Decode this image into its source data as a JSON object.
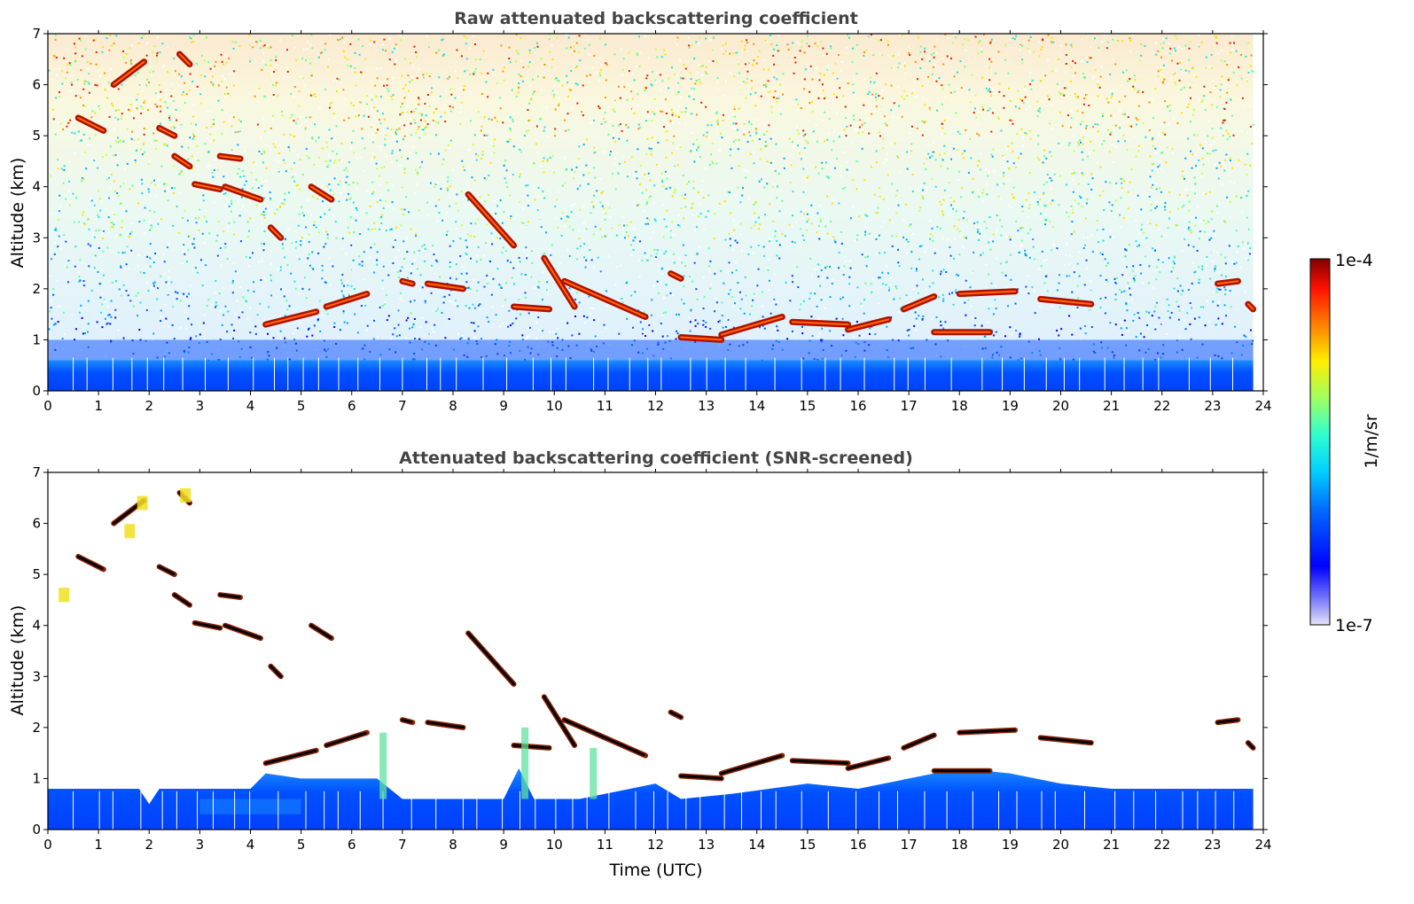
{
  "chart_data": [
    {
      "type": "heatmap",
      "title": "Raw attenuated backscattering coefficient",
      "ylabel": "Altitude (km)",
      "xlabel": "",
      "xlim": [
        0,
        24
      ],
      "ylim": [
        0,
        7
      ],
      "xticks": [
        "0",
        "1",
        "2",
        "3",
        "4",
        "5",
        "6",
        "7",
        "8",
        "9",
        "10",
        "11",
        "12",
        "13",
        "14",
        "15",
        "16",
        "17",
        "18",
        "19",
        "20",
        "21",
        "22",
        "23",
        "24"
      ],
      "yticks": [
        "0",
        "1",
        "2",
        "3",
        "4",
        "5",
        "6",
        "7"
      ],
      "data_end_hour": 23.8,
      "layers": [
        {
          "name": "boundary layer",
          "x": [
            0,
            23.8
          ],
          "y": [
            0,
            0.6
          ],
          "level": "low"
        },
        {
          "name": "noise above 2 km",
          "x": [
            0,
            23.8
          ],
          "y": [
            2,
            7
          ],
          "level": "mixed"
        }
      ],
      "cloud_segments": [
        {
          "x": [
            0.6,
            1.1
          ],
          "y": [
            5.35,
            5.1
          ]
        },
        {
          "x": [
            1.3,
            1.9
          ],
          "y": [
            6.0,
            6.45
          ]
        },
        {
          "x": [
            2.2,
            2.5
          ],
          "y": [
            5.15,
            5.0
          ]
        },
        {
          "x": [
            2.6,
            2.8
          ],
          "y": [
            6.6,
            6.4
          ]
        },
        {
          "x": [
            2.5,
            2.8
          ],
          "y": [
            4.6,
            4.4
          ]
        },
        {
          "x": [
            2.9,
            3.4
          ],
          "y": [
            4.05,
            3.95
          ]
        },
        {
          "x": [
            3.5,
            4.2
          ],
          "y": [
            4.0,
            3.75
          ]
        },
        {
          "x": [
            3.4,
            3.8
          ],
          "y": [
            4.6,
            4.55
          ]
        },
        {
          "x": [
            4.4,
            4.6
          ],
          "y": [
            3.2,
            3.0
          ]
        },
        {
          "x": [
            5.2,
            5.6
          ],
          "y": [
            4.0,
            3.75
          ]
        },
        {
          "x": [
            4.3,
            5.3
          ],
          "y": [
            1.3,
            1.55
          ]
        },
        {
          "x": [
            5.5,
            6.3
          ],
          "y": [
            1.65,
            1.9
          ]
        },
        {
          "x": [
            7.0,
            7.2
          ],
          "y": [
            2.15,
            2.1
          ]
        },
        {
          "x": [
            7.5,
            8.2
          ],
          "y": [
            2.1,
            2.0
          ]
        },
        {
          "x": [
            8.3,
            9.2
          ],
          "y": [
            3.85,
            2.85
          ]
        },
        {
          "x": [
            9.2,
            9.9
          ],
          "y": [
            1.65,
            1.6
          ]
        },
        {
          "x": [
            9.8,
            10.4
          ],
          "y": [
            2.6,
            1.65
          ]
        },
        {
          "x": [
            10.2,
            11.8
          ],
          "y": [
            2.15,
            1.45
          ]
        },
        {
          "x": [
            12.3,
            12.5
          ],
          "y": [
            2.3,
            2.2
          ]
        },
        {
          "x": [
            12.5,
            13.3
          ],
          "y": [
            1.05,
            1.0
          ]
        },
        {
          "x": [
            13.3,
            14.5
          ],
          "y": [
            1.1,
            1.45
          ]
        },
        {
          "x": [
            14.7,
            15.8
          ],
          "y": [
            1.35,
            1.3
          ]
        },
        {
          "x": [
            15.8,
            16.6
          ],
          "y": [
            1.2,
            1.4
          ]
        },
        {
          "x": [
            16.9,
            17.5
          ],
          "y": [
            1.6,
            1.85
          ]
        },
        {
          "x": [
            17.5,
            18.6
          ],
          "y": [
            1.15,
            1.15
          ]
        },
        {
          "x": [
            18.0,
            19.1
          ],
          "y": [
            1.9,
            1.95
          ]
        },
        {
          "x": [
            19.6,
            20.6
          ],
          "y": [
            1.8,
            1.7
          ]
        },
        {
          "x": [
            23.1,
            23.5
          ],
          "y": [
            2.1,
            2.15
          ]
        },
        {
          "x": [
            23.7,
            23.8
          ],
          "y": [
            1.7,
            1.6
          ]
        }
      ]
    },
    {
      "type": "heatmap",
      "title": "Attenuated backscattering coefficient (SNR-screened)",
      "ylabel": "Altitude (km)",
      "xlabel": "Time (UTC)",
      "xlim": [
        0,
        24
      ],
      "ylim": [
        0,
        7
      ],
      "xticks": [
        "0",
        "1",
        "2",
        "3",
        "4",
        "5",
        "6",
        "7",
        "8",
        "9",
        "10",
        "11",
        "12",
        "13",
        "14",
        "15",
        "16",
        "17",
        "18",
        "19",
        "20",
        "21",
        "22",
        "23",
        "24"
      ],
      "yticks": [
        "0",
        "1",
        "2",
        "3",
        "4",
        "5",
        "6",
        "7"
      ],
      "data_end_hour": 23.8,
      "boundary_layer_top_km": [
        [
          0,
          0.8
        ],
        [
          1.8,
          0.8
        ],
        [
          2.0,
          0.5
        ],
        [
          2.2,
          0.8
        ],
        [
          4.0,
          0.8
        ],
        [
          4.3,
          1.1
        ],
        [
          5.0,
          1.0
        ],
        [
          6.5,
          1.0
        ],
        [
          7.0,
          0.6
        ],
        [
          9.0,
          0.6
        ],
        [
          9.3,
          1.2
        ],
        [
          9.6,
          0.6
        ],
        [
          10.5,
          0.6
        ],
        [
          11.0,
          0.7
        ],
        [
          12.0,
          0.9
        ],
        [
          12.5,
          0.6
        ],
        [
          13.5,
          0.7
        ],
        [
          15.0,
          0.9
        ],
        [
          16.0,
          0.8
        ],
        [
          17.0,
          1.0
        ],
        [
          18.0,
          1.2
        ],
        [
          19.0,
          1.1
        ],
        [
          20.0,
          0.9
        ],
        [
          21.0,
          0.8
        ],
        [
          23.8,
          0.8
        ]
      ]
    }
  ],
  "colorbar": {
    "label": "1/m/sr",
    "max_label": "1e-4",
    "min_label": "1e-7",
    "colormap": "jet"
  }
}
